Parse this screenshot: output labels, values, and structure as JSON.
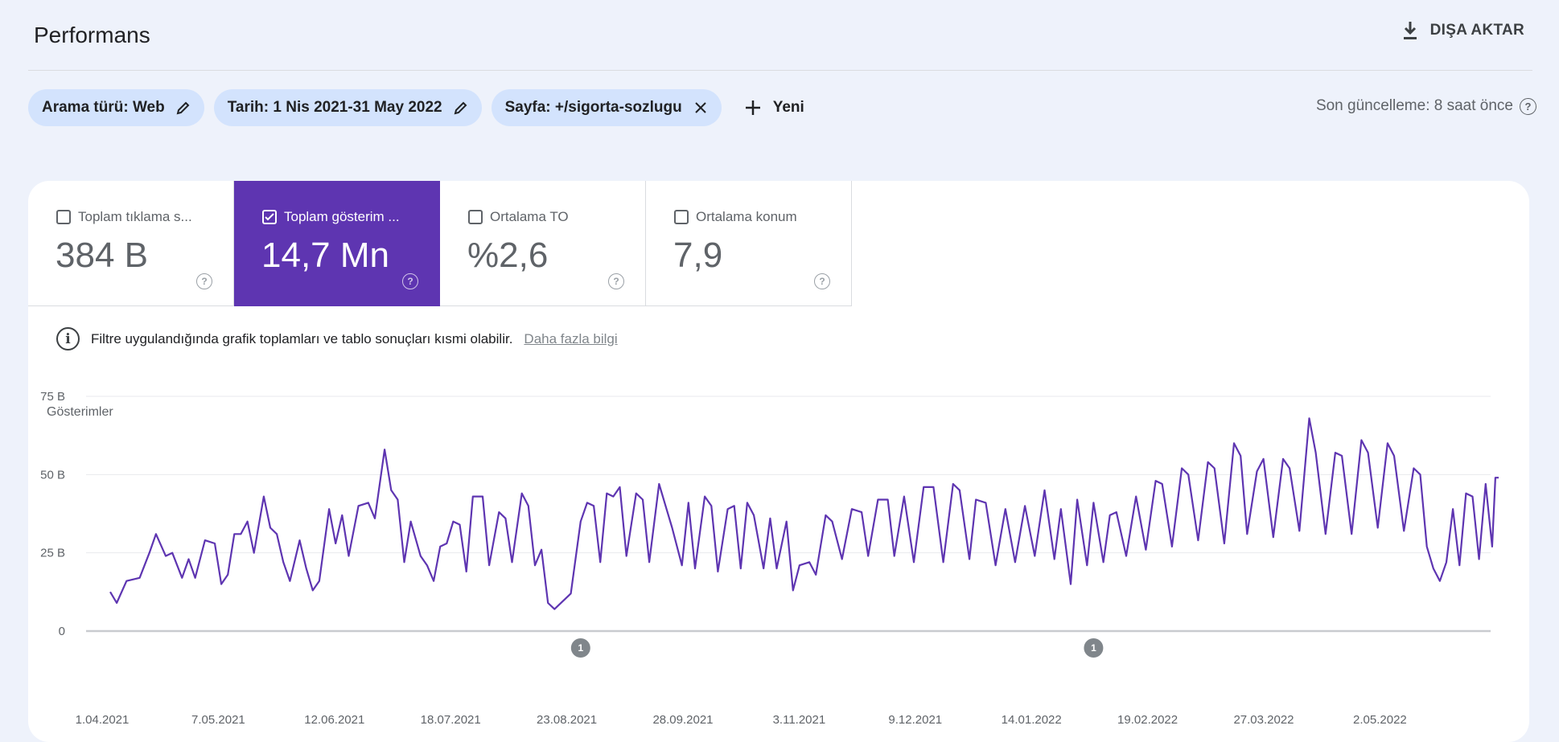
{
  "header": {
    "title": "Performans",
    "export_label": "DIŞA AKTAR"
  },
  "filters": {
    "chips": [
      {
        "label": "Arama türü: Web",
        "icon": "edit-icon"
      },
      {
        "label": "Tarih: 1 Nis 2021-31 May 2022",
        "icon": "edit-icon"
      },
      {
        "label": "Sayfa: +/sigorta-sozlugu",
        "icon": "close-icon"
      }
    ],
    "new_label": "Yeni",
    "last_update": "Son güncelleme: 8 saat önce"
  },
  "metrics": [
    {
      "label": "Toplam tıklama s...",
      "value": "384 B",
      "selected": false
    },
    {
      "label": "Toplam gösterim ...",
      "value": "14,7 Mn",
      "selected": true
    },
    {
      "label": "Ortalama TO",
      "value": "%2,6",
      "selected": false
    },
    {
      "label": "Ortalama konum",
      "value": "7,9",
      "selected": false
    }
  ],
  "notice": {
    "text": "Filtre uygulandığında grafik toplamları ve tablo sonuçları kısmi olabilir.",
    "link": "Daha fazla bilgi"
  },
  "colors": {
    "accent": "#5e35b1",
    "chip_bg": "#d3e3fd",
    "page_bg": "#eef2fb"
  },
  "chart_data": {
    "type": "line",
    "ylabel": "Gösterimler",
    "ylim": [
      0,
      75000
    ],
    "yticks": [
      {
        "value": 0,
        "label": "0"
      },
      {
        "value": 25000,
        "label": "25 B"
      },
      {
        "value": 50000,
        "label": "50 B"
      },
      {
        "value": 75000,
        "label": "75 B"
      }
    ],
    "x_range": [
      "2021-04-01",
      "2022-05-31"
    ],
    "xtick_labels": [
      "1.04.2021",
      "7.05.2021",
      "12.06.2021",
      "18.07.2021",
      "23.08.2021",
      "28.09.2021",
      "3.11.2021",
      "9.12.2021",
      "14.01.2022",
      "19.02.2022",
      "27.03.2022",
      "2.05.2022"
    ],
    "annotations": [
      {
        "date": "2021-08-23",
        "label": "1"
      },
      {
        "date": "2022-01-27",
        "label": "1"
      }
    ],
    "grid": true,
    "series": [
      {
        "points": [
          [
            "2021-04-01",
            12500
          ],
          [
            "2021-04-03",
            9000
          ],
          [
            "2021-04-06",
            16000
          ],
          [
            "2021-04-10",
            17000
          ],
          [
            "2021-04-13",
            25000
          ],
          [
            "2021-04-15",
            31000
          ],
          [
            "2021-04-18",
            24000
          ],
          [
            "2021-04-20",
            25000
          ],
          [
            "2021-04-23",
            17000
          ],
          [
            "2021-04-25",
            23000
          ],
          [
            "2021-04-27",
            17000
          ],
          [
            "2021-04-30",
            29000
          ],
          [
            "2021-05-03",
            28000
          ],
          [
            "2021-05-05",
            15000
          ],
          [
            "2021-05-07",
            18000
          ],
          [
            "2021-05-09",
            31000
          ],
          [
            "2021-05-11",
            31000
          ],
          [
            "2021-05-13",
            35000
          ],
          [
            "2021-05-15",
            25000
          ],
          [
            "2021-05-18",
            43000
          ],
          [
            "2021-05-20",
            33000
          ],
          [
            "2021-05-22",
            31000
          ],
          [
            "2021-05-24",
            22000
          ],
          [
            "2021-05-26",
            16000
          ],
          [
            "2021-05-29",
            29000
          ],
          [
            "2021-05-31",
            20000
          ],
          [
            "2021-06-02",
            13000
          ],
          [
            "2021-06-04",
            16000
          ],
          [
            "2021-06-07",
            39000
          ],
          [
            "2021-06-09",
            28000
          ],
          [
            "2021-06-11",
            37000
          ],
          [
            "2021-06-13",
            24000
          ],
          [
            "2021-06-16",
            40000
          ],
          [
            "2021-06-19",
            41000
          ],
          [
            "2021-06-21",
            36000
          ],
          [
            "2021-06-24",
            58000
          ],
          [
            "2021-06-26",
            45000
          ],
          [
            "2021-06-28",
            42000
          ],
          [
            "2021-06-30",
            22000
          ],
          [
            "2021-07-02",
            35000
          ],
          [
            "2021-07-05",
            24000
          ],
          [
            "2021-07-07",
            21000
          ],
          [
            "2021-07-09",
            16000
          ],
          [
            "2021-07-11",
            27000
          ],
          [
            "2021-07-13",
            28000
          ],
          [
            "2021-07-15",
            35000
          ],
          [
            "2021-07-17",
            34000
          ],
          [
            "2021-07-19",
            19000
          ],
          [
            "2021-07-21",
            43000
          ],
          [
            "2021-07-24",
            43000
          ],
          [
            "2021-07-26",
            21000
          ],
          [
            "2021-07-29",
            38000
          ],
          [
            "2021-07-31",
            36000
          ],
          [
            "2021-08-02",
            22000
          ],
          [
            "2021-08-05",
            44000
          ],
          [
            "2021-08-07",
            40000
          ],
          [
            "2021-08-09",
            21000
          ],
          [
            "2021-08-11",
            26000
          ],
          [
            "2021-08-13",
            9000
          ],
          [
            "2021-08-15",
            7000
          ],
          [
            "2021-08-18",
            10000
          ],
          [
            "2021-08-20",
            12000
          ],
          [
            "2021-08-23",
            35000
          ],
          [
            "2021-08-25",
            41000
          ],
          [
            "2021-08-27",
            40000
          ],
          [
            "2021-08-29",
            22000
          ],
          [
            "2021-08-31",
            44000
          ],
          [
            "2021-09-02",
            43000
          ],
          [
            "2021-09-04",
            46000
          ],
          [
            "2021-09-06",
            24000
          ],
          [
            "2021-09-09",
            44000
          ],
          [
            "2021-09-11",
            42000
          ],
          [
            "2021-09-13",
            22000
          ],
          [
            "2021-09-16",
            47000
          ],
          [
            "2021-09-18",
            40000
          ],
          [
            "2021-09-20",
            33000
          ],
          [
            "2021-09-23",
            21000
          ],
          [
            "2021-09-25",
            41000
          ],
          [
            "2021-09-27",
            20000
          ],
          [
            "2021-09-30",
            43000
          ],
          [
            "2021-10-02",
            40000
          ],
          [
            "2021-10-04",
            19000
          ],
          [
            "2021-10-07",
            39000
          ],
          [
            "2021-10-09",
            40000
          ],
          [
            "2021-10-11",
            20000
          ],
          [
            "2021-10-13",
            41000
          ],
          [
            "2021-10-15",
            37000
          ],
          [
            "2021-10-18",
            20000
          ],
          [
            "2021-10-20",
            36000
          ],
          [
            "2021-10-22",
            20000
          ],
          [
            "2021-10-25",
            35000
          ],
          [
            "2021-10-27",
            13000
          ],
          [
            "2021-10-29",
            21000
          ],
          [
            "2021-11-01",
            22000
          ],
          [
            "2021-11-03",
            18000
          ],
          [
            "2021-11-06",
            37000
          ],
          [
            "2021-11-08",
            35000
          ],
          [
            "2021-11-11",
            23000
          ],
          [
            "2021-11-14",
            39000
          ],
          [
            "2021-11-17",
            38000
          ],
          [
            "2021-11-19",
            24000
          ],
          [
            "2021-11-22",
            42000
          ],
          [
            "2021-11-25",
            42000
          ],
          [
            "2021-11-27",
            24000
          ],
          [
            "2021-11-30",
            43000
          ],
          [
            "2021-12-03",
            22000
          ],
          [
            "2021-12-06",
            46000
          ],
          [
            "2021-12-09",
            46000
          ],
          [
            "2021-12-12",
            22000
          ],
          [
            "2021-12-15",
            47000
          ],
          [
            "2021-12-17",
            45000
          ],
          [
            "2021-12-20",
            23000
          ],
          [
            "2021-12-22",
            42000
          ],
          [
            "2021-12-25",
            41000
          ],
          [
            "2021-12-28",
            21000
          ],
          [
            "2021-12-31",
            39000
          ],
          [
            "2022-01-03",
            22000
          ],
          [
            "2022-01-06",
            40000
          ],
          [
            "2022-01-09",
            24000
          ],
          [
            "2022-01-12",
            45000
          ],
          [
            "2022-01-15",
            23000
          ],
          [
            "2022-01-17",
            39000
          ],
          [
            "2022-01-20",
            15000
          ],
          [
            "2022-01-22",
            42000
          ],
          [
            "2022-01-25",
            21000
          ],
          [
            "2022-01-27",
            41000
          ],
          [
            "2022-01-30",
            22000
          ],
          [
            "2022-02-01",
            37000
          ],
          [
            "2022-02-03",
            38000
          ],
          [
            "2022-02-06",
            24000
          ],
          [
            "2022-02-09",
            43000
          ],
          [
            "2022-02-12",
            26000
          ],
          [
            "2022-02-15",
            48000
          ],
          [
            "2022-02-17",
            47000
          ],
          [
            "2022-02-20",
            27000
          ],
          [
            "2022-02-23",
            52000
          ],
          [
            "2022-02-25",
            50000
          ],
          [
            "2022-02-28",
            29000
          ],
          [
            "2022-03-03",
            54000
          ],
          [
            "2022-03-05",
            52000
          ],
          [
            "2022-03-08",
            28000
          ],
          [
            "2022-03-11",
            60000
          ],
          [
            "2022-03-13",
            56000
          ],
          [
            "2022-03-15",
            31000
          ],
          [
            "2022-03-18",
            51000
          ],
          [
            "2022-03-20",
            55000
          ],
          [
            "2022-03-23",
            30000
          ],
          [
            "2022-03-26",
            55000
          ],
          [
            "2022-03-28",
            52000
          ],
          [
            "2022-03-31",
            32000
          ],
          [
            "2022-04-03",
            68000
          ],
          [
            "2022-04-05",
            57000
          ],
          [
            "2022-04-08",
            31000
          ],
          [
            "2022-04-11",
            57000
          ],
          [
            "2022-04-13",
            56000
          ],
          [
            "2022-04-16",
            31000
          ],
          [
            "2022-04-19",
            61000
          ],
          [
            "2022-04-21",
            57000
          ],
          [
            "2022-04-24",
            33000
          ],
          [
            "2022-04-27",
            60000
          ],
          [
            "2022-04-29",
            56000
          ],
          [
            "2022-05-02",
            32000
          ],
          [
            "2022-05-05",
            52000
          ],
          [
            "2022-05-07",
            50000
          ],
          [
            "2022-05-09",
            27000
          ],
          [
            "2022-05-11",
            20000
          ],
          [
            "2022-05-13",
            16000
          ],
          [
            "2022-05-15",
            22000
          ],
          [
            "2022-05-17",
            39000
          ],
          [
            "2022-05-19",
            21000
          ],
          [
            "2022-05-21",
            44000
          ],
          [
            "2022-05-23",
            43000
          ],
          [
            "2022-05-25",
            23000
          ],
          [
            "2022-05-27",
            47000
          ],
          [
            "2022-05-29",
            27000
          ],
          [
            "2022-05-30",
            49000
          ],
          [
            "2022-05-31",
            49000
          ]
        ]
      }
    ]
  }
}
